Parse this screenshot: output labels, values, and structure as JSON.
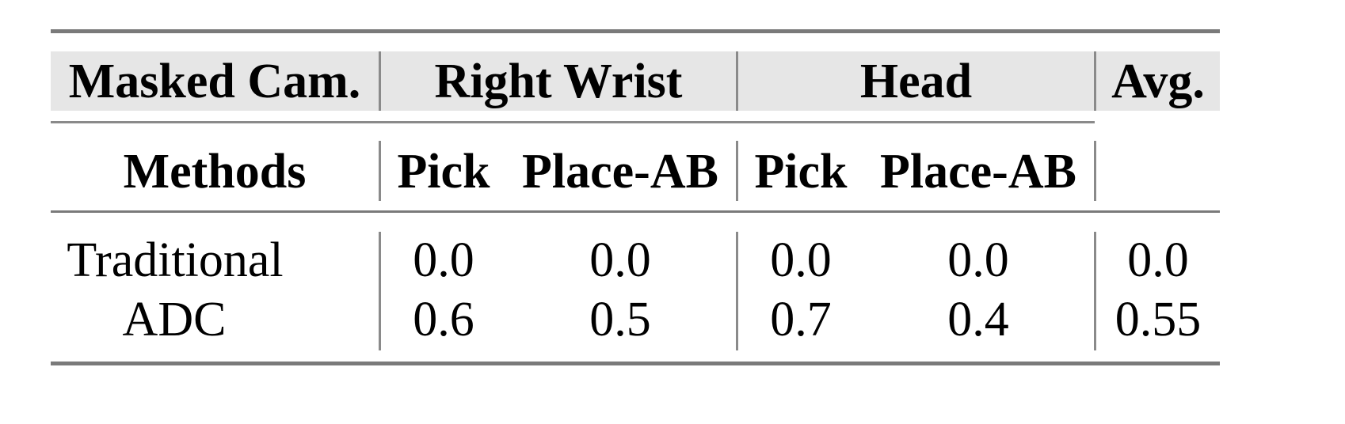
{
  "table": {
    "header_row1": {
      "masked_cam": "Masked Cam.",
      "right_wrist": "Right Wrist",
      "head": "Head",
      "avg": "Avg."
    },
    "header_row2": {
      "methods": "Methods",
      "cols": [
        "Pick",
        "Place-AB",
        "Pick",
        "Place-AB"
      ]
    },
    "rows": [
      {
        "method": "Traditional",
        "values": [
          "0.0",
          "0.0",
          "0.0",
          "0.0",
          "0.0"
        ]
      },
      {
        "method": "ADC",
        "values": [
          "0.6",
          "0.5",
          "0.7",
          "0.4",
          "0.55"
        ]
      }
    ]
  },
  "colors": {
    "header_bg": "#e6e6e6",
    "rules": "#7a7a7a"
  }
}
